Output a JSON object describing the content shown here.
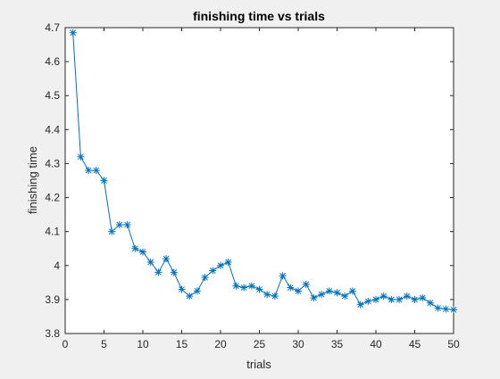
{
  "chart_data": {
    "type": "line",
    "title": "finishing time vs trials",
    "xlabel": "trials",
    "ylabel": "finishing time",
    "xlim": [
      0,
      50
    ],
    "ylim": [
      3.8,
      4.7
    ],
    "xticks": [
      0,
      5,
      10,
      15,
      20,
      25,
      30,
      35,
      40,
      45,
      50
    ],
    "yticks": [
      3.8,
      3.9,
      4.0,
      4.1,
      4.2,
      4.3,
      4.4,
      4.5,
      4.6,
      4.7
    ],
    "ytick_labels": [
      "3.8",
      "3.9",
      "4",
      "4.1",
      "4.2",
      "4.3",
      "4.4",
      "4.5",
      "4.6",
      "4.7"
    ],
    "grid": false,
    "marker": "asterisk",
    "line_color": "#0072bd",
    "series": [
      {
        "x": [
          1,
          2,
          3,
          4,
          5,
          6,
          7,
          8,
          9,
          10,
          11,
          12,
          13,
          14,
          15,
          16,
          17,
          18,
          19,
          20,
          21,
          22,
          23,
          24,
          25,
          26,
          27,
          28,
          29,
          30,
          31,
          32,
          33,
          34,
          35,
          36,
          37,
          38,
          39,
          40,
          41,
          42,
          43,
          44,
          45,
          46,
          47,
          48,
          49,
          50
        ],
        "values": [
          4.685,
          4.32,
          4.28,
          4.28,
          4.25,
          4.1,
          4.12,
          4.12,
          4.05,
          4.04,
          4.01,
          3.98,
          4.02,
          3.98,
          3.93,
          3.91,
          3.925,
          3.965,
          3.985,
          4.0,
          4.01,
          3.94,
          3.935,
          3.94,
          3.93,
          3.915,
          3.91,
          3.97,
          3.935,
          3.925,
          3.945,
          3.905,
          3.915,
          3.925,
          3.92,
          3.91,
          3.925,
          3.885,
          3.895,
          3.9,
          3.91,
          3.9,
          3.9,
          3.91,
          3.9,
          3.905,
          3.89,
          3.875,
          3.872,
          3.87
        ]
      }
    ]
  }
}
